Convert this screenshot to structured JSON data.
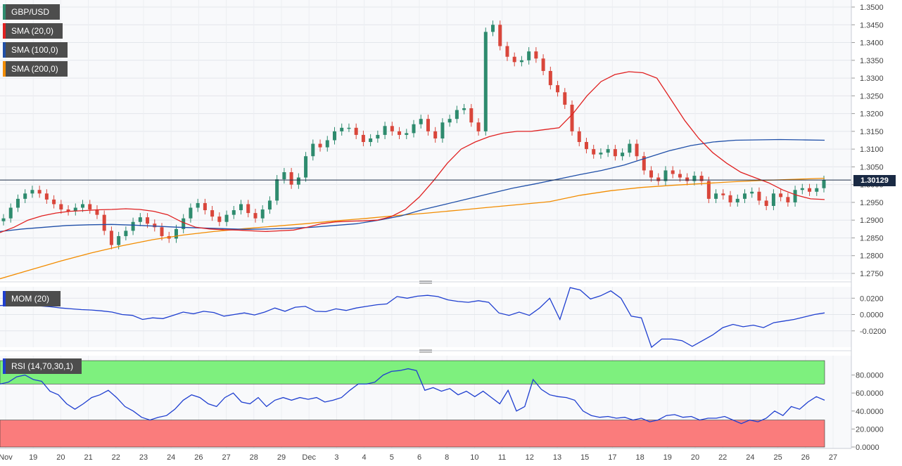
{
  "legend": {
    "symbol": "GBP/USD",
    "sma20": "SMA (20,0)",
    "sma100": "SMA (100,0)",
    "sma200": "SMA (200,0)",
    "mom": "MOM (20)",
    "rsi": "RSI (14,70,30,1)"
  },
  "colors": {
    "up": "#2e8b6e",
    "down": "#d9463b",
    "sma20": "#e02020",
    "sma100": "#1f4fa8",
    "sma200": "#f28c00",
    "mom": "#1f3fd0",
    "rsi": "#1f3fd0",
    "overbought_zone": "#7ef07e",
    "oversold_zone": "#fa7c7c",
    "current_price_line": "#1a2a44"
  },
  "current_price": "1.30129",
  "x_labels": [
    "Nov",
    "19",
    "20",
    "21",
    "22",
    "23",
    "24",
    "26",
    "27",
    "28",
    "29",
    "Dec",
    "3",
    "4",
    "5",
    "6",
    "8",
    "10",
    "11",
    "12",
    "13",
    "15",
    "17",
    "18",
    "19",
    "20",
    "22",
    "24",
    "25",
    "26",
    "27"
  ],
  "chart_data": [
    {
      "type": "candlestick",
      "ylim": [
        1.273,
        1.351
      ],
      "yticks": [
        "1.2750",
        "1.2800",
        "1.2850",
        "1.2900",
        "1.2950",
        "1.3000",
        "1.3050",
        "1.3100",
        "1.3150",
        "1.3200",
        "1.3250",
        "1.3300",
        "1.3350",
        "1.3400",
        "1.3450",
        "1.3500"
      ],
      "ytick_values": [
        1.275,
        1.28,
        1.285,
        1.29,
        1.295,
        1.3,
        1.305,
        1.31,
        1.315,
        1.32,
        1.325,
        1.33,
        1.335,
        1.34,
        1.345,
        1.35
      ],
      "close": [
        1.2905,
        1.2935,
        1.296,
        1.2975,
        1.2985,
        1.2975,
        1.2958,
        1.2945,
        1.293,
        1.2925,
        1.2935,
        1.2945,
        1.293,
        1.2915,
        1.287,
        1.283,
        1.2855,
        1.287,
        1.2895,
        1.2908,
        1.289,
        1.288,
        1.2855,
        1.2848,
        1.2875,
        1.2905,
        1.2935,
        1.2948,
        1.2928,
        1.291,
        1.2895,
        1.2915,
        1.2928,
        1.2945,
        1.292,
        1.2905,
        1.293,
        1.2955,
        1.3015,
        1.3035,
        1.3,
        1.302,
        1.308,
        1.3115,
        1.3105,
        1.3125,
        1.315,
        1.316,
        1.316,
        1.314,
        1.312,
        1.313,
        1.314,
        1.3165,
        1.315,
        1.314,
        1.3145,
        1.317,
        1.3185,
        1.315,
        1.313,
        1.3175,
        1.3185,
        1.321,
        1.3215,
        1.3175,
        1.315,
        1.343,
        1.345,
        1.339,
        1.336,
        1.3345,
        1.335,
        1.3375,
        1.3355,
        1.332,
        1.328,
        1.326,
        1.3225,
        1.315,
        1.312,
        1.31,
        1.3085,
        1.309,
        1.31,
        1.308,
        1.309,
        1.3115,
        1.308,
        1.304,
        1.302,
        1.301,
        1.304,
        1.303,
        1.302,
        1.301,
        1.3025,
        1.301,
        1.296,
        1.2975,
        1.297,
        1.295,
        1.296,
        1.2975,
        1.298,
        1.2955,
        1.294,
        1.2975,
        1.2965,
        1.295,
        1.2985,
        1.299,
        1.298,
        1.299,
        1.3013
      ],
      "sma20": [
        1.2865,
        1.288,
        1.29,
        1.2912,
        1.292,
        1.2925,
        1.2927,
        1.2929,
        1.293,
        1.2932,
        1.293,
        1.2925,
        1.2915,
        1.2895,
        1.288,
        1.2875,
        1.2873,
        1.2872,
        1.287,
        1.2868,
        1.287,
        1.2872,
        1.288,
        1.289,
        1.2895,
        1.2897,
        1.2898,
        1.29,
        1.291,
        1.293,
        1.2965,
        1.301,
        1.306,
        1.31,
        1.312,
        1.3135,
        1.3145,
        1.315,
        1.315,
        1.3155,
        1.316,
        1.32,
        1.325,
        1.329,
        1.331,
        1.3318,
        1.3315,
        1.33,
        1.324,
        1.318,
        1.313,
        1.309,
        1.306,
        1.3035,
        1.302,
        1.3005,
        1.2985,
        1.297,
        1.296,
        1.2958
      ],
      "sma100": [
        1.2868,
        1.2875,
        1.288,
        1.2885,
        1.2887,
        1.2888,
        1.2886,
        1.2883,
        1.288,
        1.2878,
        1.2876,
        1.2874,
        1.2875,
        1.2877,
        1.288,
        1.2885,
        1.289,
        1.29,
        1.2912,
        1.293,
        1.2945,
        1.296,
        1.2975,
        1.299,
        1.3002,
        1.3015,
        1.3028,
        1.304,
        1.3055,
        1.3075,
        1.3095,
        1.311,
        1.312,
        1.3125,
        1.3126,
        1.3127,
        1.3126,
        1.3125
      ],
      "sma200": [
        1.2735,
        1.276,
        1.2785,
        1.2808,
        1.2828,
        1.2845,
        1.2858,
        1.2868,
        1.2876,
        1.2883,
        1.289,
        1.2898,
        1.2905,
        1.2913,
        1.292,
        1.2928,
        1.2936,
        1.2944,
        1.2952,
        1.297,
        1.2983,
        1.2992,
        1.2998,
        1.3003,
        1.3008,
        1.3012,
        1.3015,
        1.3018
      ],
      "series": [
        {
          "name": "SMA (20,0)"
        },
        {
          "name": "SMA (100,0)"
        },
        {
          "name": "SMA (200,0)"
        }
      ]
    },
    {
      "type": "line",
      "name": "MOM (20)",
      "ylim": [
        -0.04,
        0.034
      ],
      "yticks": [
        "0.0200",
        "0.0000",
        "-0.0200"
      ],
      "ytick_values": [
        0.02,
        0.0,
        -0.02
      ],
      "values": [
        0.011,
        0.0115,
        0.013,
        0.012,
        0.0105,
        0.0095,
        0.008,
        0.007,
        0.006,
        0.0055,
        0.0045,
        0.003,
        0.0,
        -0.001,
        -0.006,
        -0.004,
        -0.005,
        -0.001,
        0.003,
        0.001,
        0.004,
        0.0025,
        -0.002,
        0.0,
        0.002,
        -0.0005,
        0.003,
        0.008,
        0.004,
        0.009,
        0.01,
        0.004,
        0.0035,
        0.007,
        0.005,
        0.008,
        0.01,
        0.012,
        0.013,
        0.022,
        0.02,
        0.0225,
        0.0235,
        0.022,
        0.018,
        0.016,
        0.015,
        0.017,
        0.015,
        0.002,
        -0.001,
        0.003,
        -0.001,
        0.008,
        0.02,
        -0.006,
        0.033,
        0.03,
        0.019,
        0.023,
        0.029,
        0.02,
        -0.002,
        -0.004,
        -0.04,
        -0.03,
        -0.03,
        -0.032,
        -0.039,
        -0.032,
        -0.025,
        -0.016,
        -0.012,
        -0.015,
        -0.013,
        -0.016,
        -0.01,
        -0.008,
        -0.006,
        -0.003,
        0.0,
        0.002
      ],
      "current": 0.0025
    },
    {
      "type": "line",
      "name": "RSI (14,70,30,1)",
      "ylim": [
        0,
        100
      ],
      "yticks": [
        "80.0000",
        "60.0000",
        "40.0000",
        "20.0000",
        "0.0000"
      ],
      "ytick_values": [
        80,
        60,
        40,
        20,
        0
      ],
      "overbought": 70,
      "oversold": 30,
      "values": [
        70,
        72,
        78,
        80,
        75,
        73,
        62,
        58,
        48,
        42,
        48,
        55,
        58,
        63,
        55,
        45,
        40,
        33,
        30,
        33,
        35,
        42,
        52,
        58,
        55,
        48,
        45,
        55,
        60,
        50,
        48,
        55,
        45,
        52,
        55,
        52,
        55,
        53,
        55,
        50,
        52,
        55,
        63,
        70,
        70,
        72,
        80,
        84,
        85,
        87,
        85,
        63,
        66,
        62,
        65,
        58,
        62,
        56,
        62,
        55,
        48,
        63,
        40,
        45,
        75,
        64,
        58,
        56,
        55,
        52,
        40,
        35,
        33,
        34,
        32,
        33,
        30,
        32,
        28,
        30,
        35,
        36,
        33,
        34,
        30,
        32,
        32,
        34,
        30,
        26,
        30,
        28,
        32,
        40,
        35,
        45,
        42,
        50,
        56,
        52
      ],
      "current": 54
    }
  ]
}
